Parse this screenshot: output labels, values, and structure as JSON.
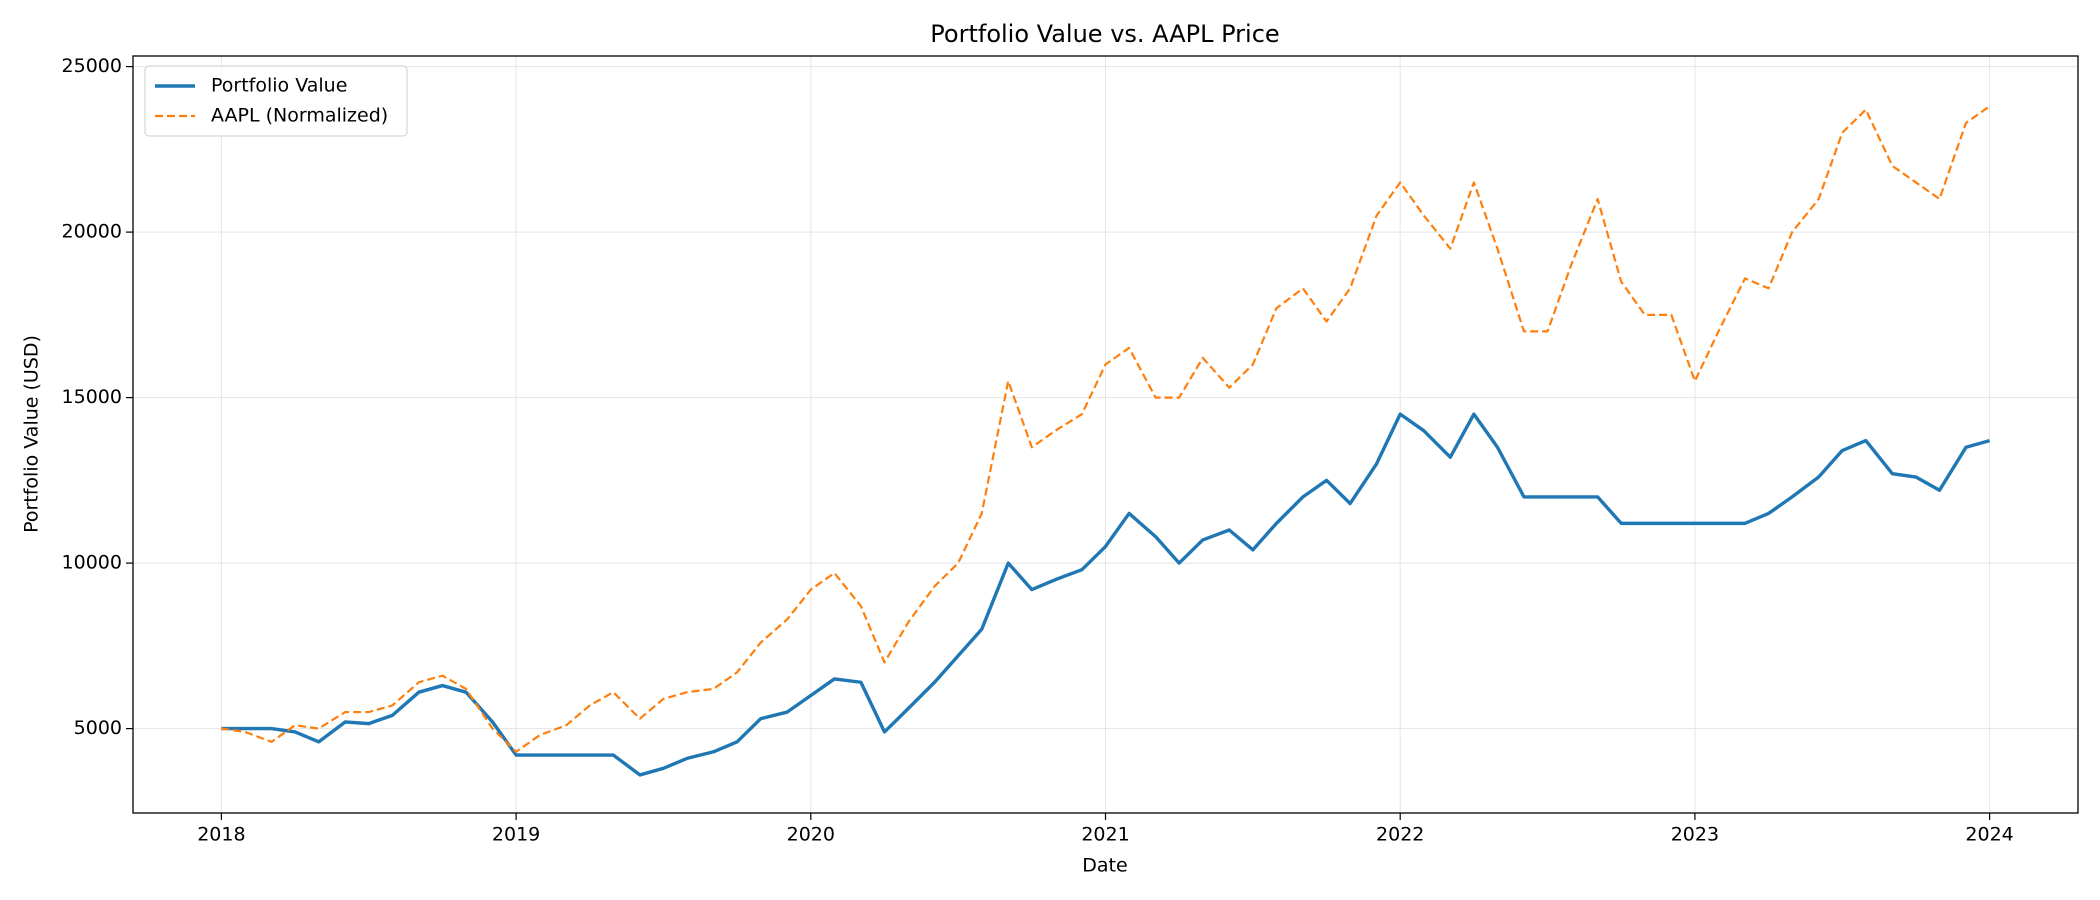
{
  "chart_data": {
    "type": "line",
    "title": "Portfolio Value vs. AAPL Price",
    "xlabel": "Date",
    "ylabel": "Portfolio Value (USD)",
    "x": [
      2018,
      2018.08,
      2018.17,
      2018.25,
      2018.33,
      2018.42,
      2018.5,
      2018.58,
      2018.67,
      2018.75,
      2018.83,
      2018.92,
      2019,
      2019.08,
      2019.17,
      2019.25,
      2019.33,
      2019.42,
      2019.5,
      2019.58,
      2019.67,
      2019.75,
      2019.83,
      2019.92,
      2020,
      2020.08,
      2020.17,
      2020.25,
      2020.33,
      2020.42,
      2020.5,
      2020.58,
      2020.67,
      2020.75,
      2020.83,
      2020.92,
      2021,
      2021.08,
      2021.17,
      2021.25,
      2021.33,
      2021.42,
      2021.5,
      2021.58,
      2021.67,
      2021.75,
      2021.83,
      2021.92,
      2022,
      2022.08,
      2022.17,
      2022.25,
      2022.33,
      2022.42,
      2022.5,
      2022.58,
      2022.67,
      2022.75,
      2022.83,
      2022.92,
      2023,
      2023.08,
      2023.17,
      2023.25,
      2023.33,
      2023.42,
      2023.5,
      2023.58,
      2023.67,
      2023.75,
      2023.83,
      2023.92,
      2024
    ],
    "series": [
      {
        "name": "Portfolio Value",
        "color": "#1f77b4",
        "dashed": false,
        "values": [
          5000,
          5000,
          5000,
          4900,
          4600,
          5200,
          5150,
          5400,
          6100,
          6300,
          6100,
          5200,
          4200,
          4200,
          4200,
          4200,
          4200,
          3600,
          3800,
          4100,
          4300,
          4600,
          5300,
          5500,
          6000,
          6500,
          6400,
          4900,
          5600,
          6400,
          7200,
          8000,
          10000,
          9200,
          9500,
          9800,
          10500,
          11500,
          10800,
          10000,
          10700,
          11000,
          10400,
          11200,
          12000,
          12500,
          11800,
          13000,
          14500,
          14000,
          13200,
          14500,
          13500,
          12000,
          12000,
          12000,
          12000,
          11200,
          11200,
          11200,
          11200,
          11200,
          11200,
          11500,
          12000,
          12600,
          13400,
          13700,
          12700,
          12600,
          12200,
          13500,
          13700
        ]
      },
      {
        "name": "AAPL (Normalized)",
        "color": "#ff7f0e",
        "dashed": true,
        "values": [
          5000,
          4900,
          4600,
          5100,
          5000,
          5500,
          5500,
          5700,
          6400,
          6600,
          6200,
          5000,
          4300,
          4800,
          5100,
          5700,
          6100,
          5300,
          5900,
          6100,
          6200,
          6700,
          7600,
          8300,
          9200,
          9700,
          8700,
          7000,
          8200,
          9300,
          10000,
          11500,
          15500,
          13500,
          14000,
          14500,
          16000,
          16500,
          15000,
          15000,
          16200,
          15300,
          16000,
          17700,
          18300,
          17300,
          18300,
          20500,
          21500,
          20500,
          19500,
          21500,
          19500,
          17000,
          17000,
          19000,
          21000,
          18500,
          17500,
          17500,
          15500,
          17000,
          18600,
          18300,
          20000,
          21000,
          23000,
          23700,
          22000,
          21500,
          21000,
          23300,
          23800
        ]
      }
    ],
    "xlim": [
      2017.7,
      2024.3
    ],
    "ylim": [
      2450,
      25320
    ],
    "xticks": [
      2018,
      2019,
      2020,
      2021,
      2022,
      2023,
      2024
    ],
    "yticks": [
      5000,
      10000,
      15000,
      20000,
      25000
    ],
    "grid": true,
    "legend": "upper left"
  }
}
